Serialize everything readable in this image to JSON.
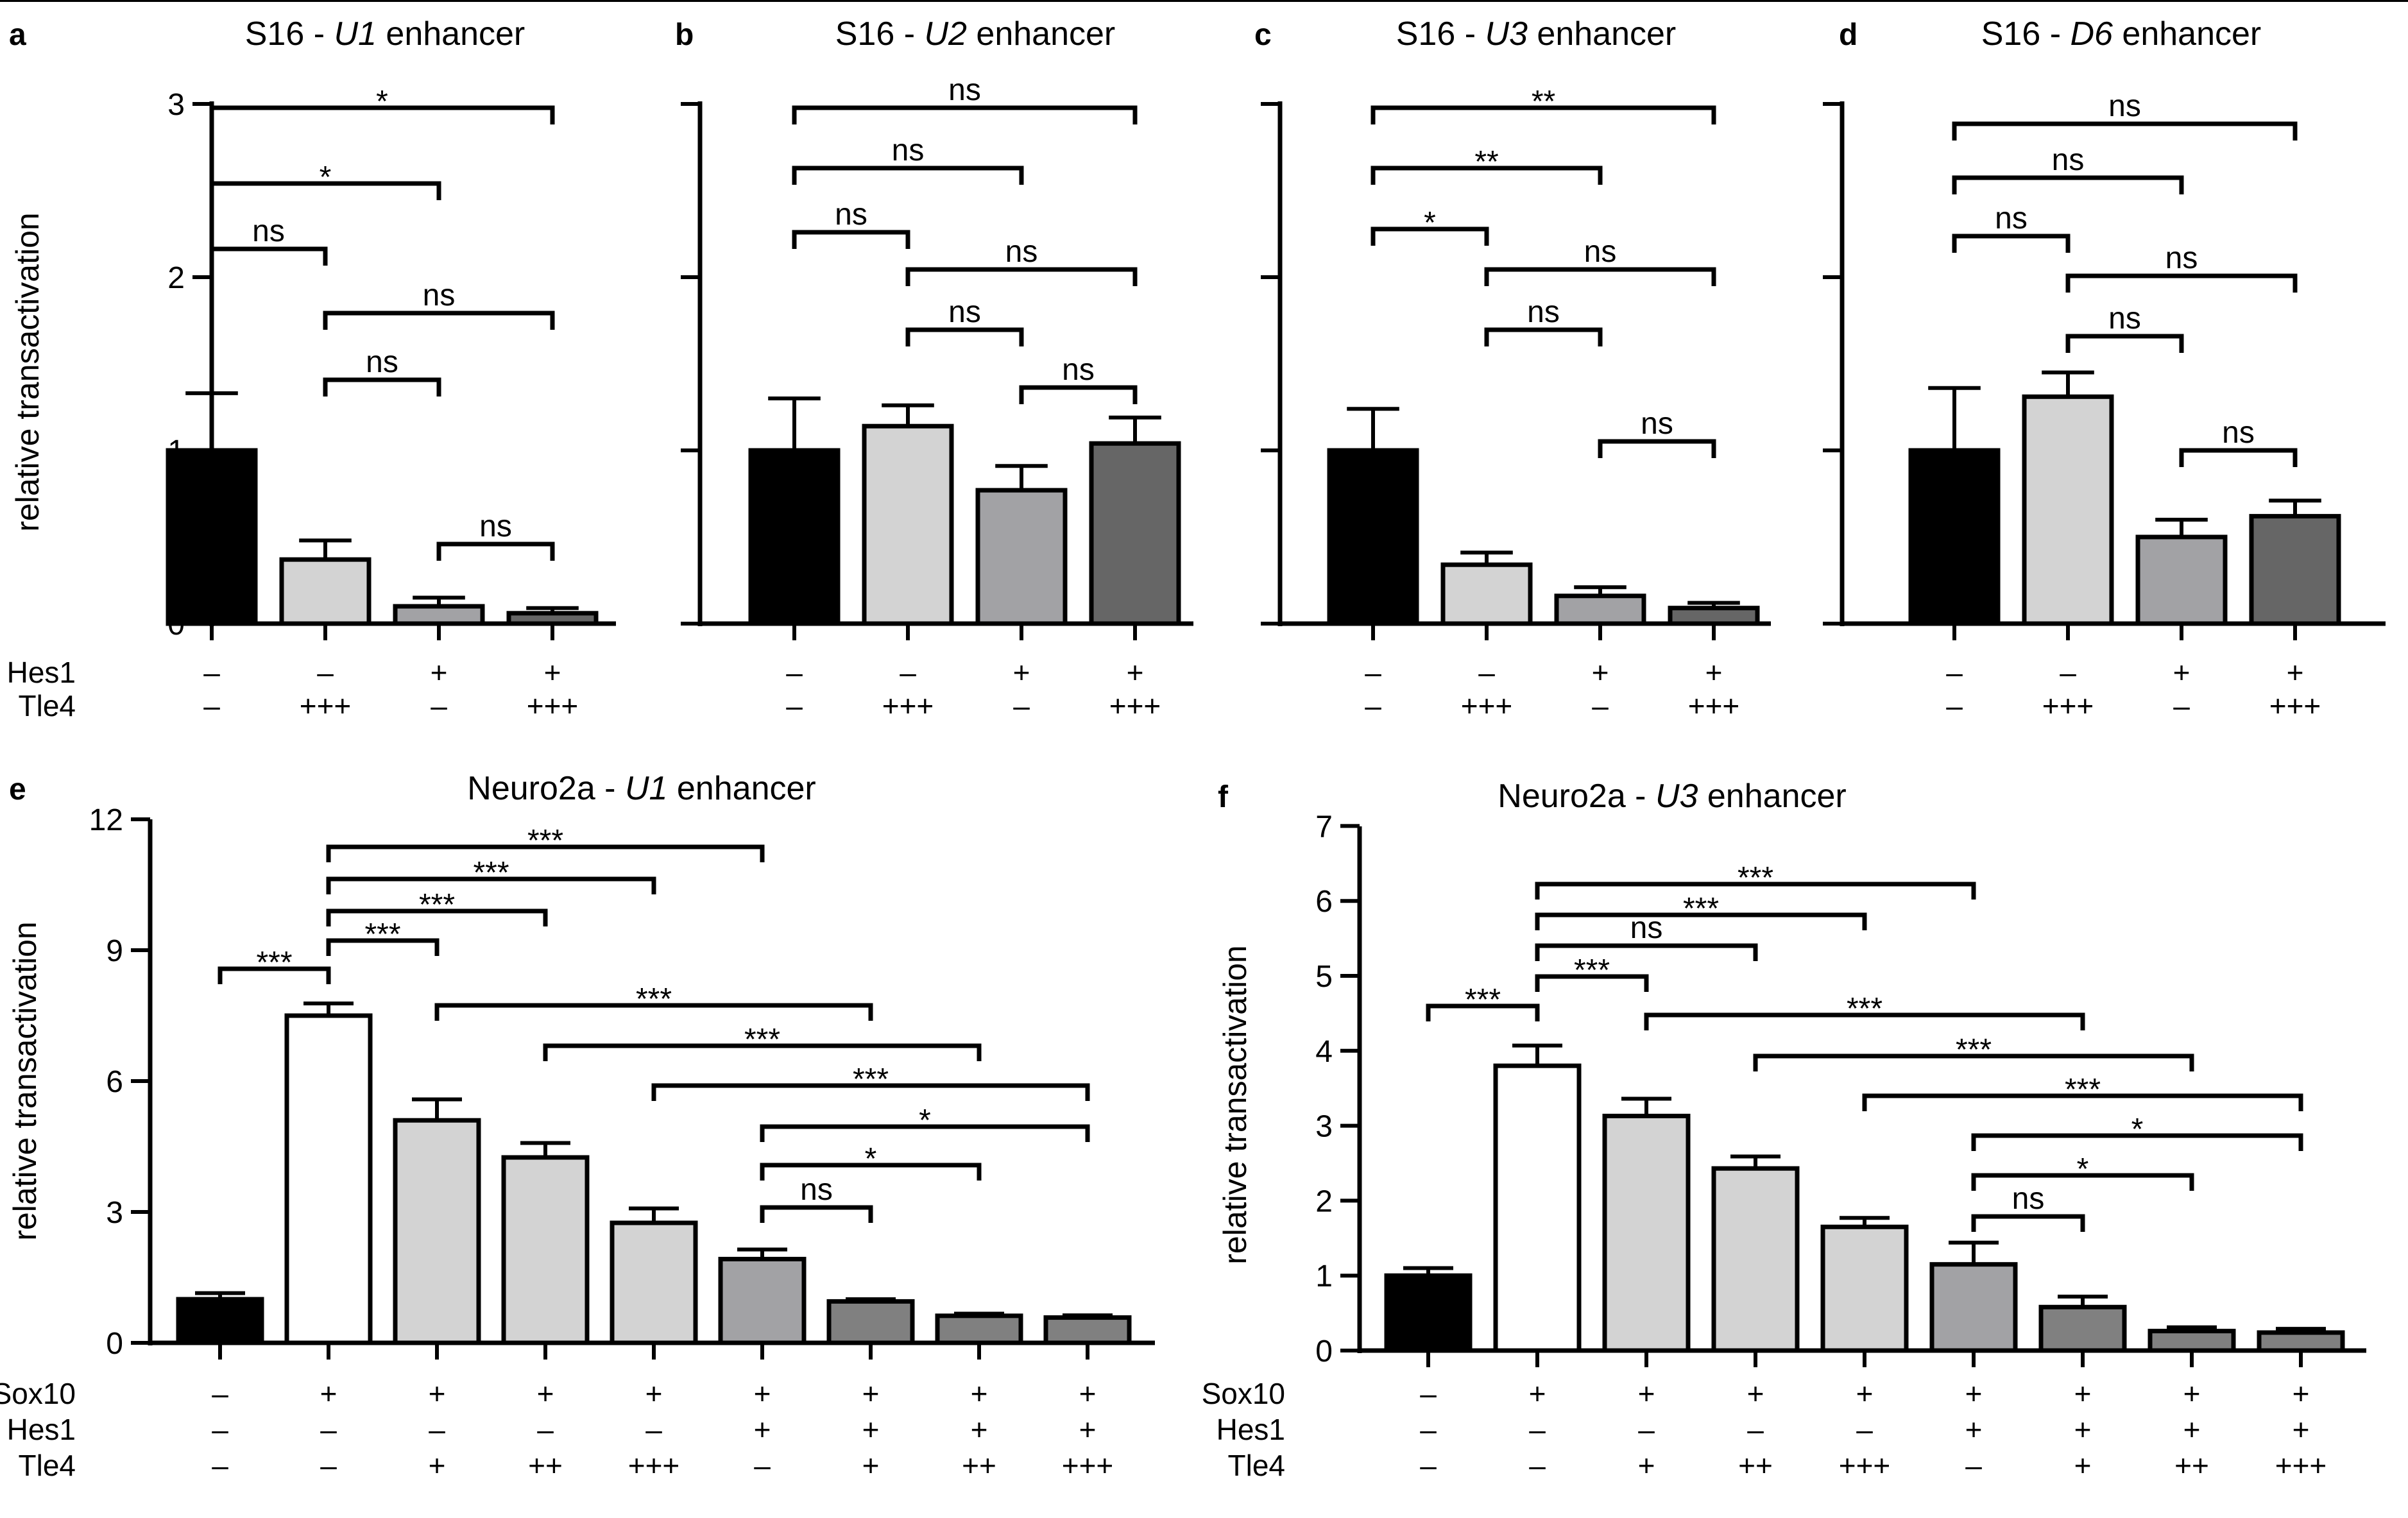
{
  "chart_data": [
    {
      "panel": "a",
      "type": "bar",
      "title": "S16 - U1 enhancer",
      "title_parts": [
        "S16 - ",
        "U1",
        " enhancer"
      ],
      "ylabel": "relative transactivation",
      "ylim": [
        0,
        3
      ],
      "yticks": [
        "0",
        "1",
        "2",
        "3"
      ],
      "values": [
        1.0,
        0.37,
        0.1,
        0.06
      ],
      "errors": [
        0.33,
        0.11,
        0.05,
        0.03
      ],
      "colors": [
        "#000000",
        "#d3d3d3",
        "#a2a2a5",
        "#666666"
      ],
      "row_labels": [
        "Hes1",
        "Tle4"
      ],
      "conditions": [
        [
          "–",
          "–",
          "+",
          "+"
        ],
        [
          "–",
          "+++",
          "–",
          "+++"
        ]
      ],
      "significance": [
        {
          "from": 0,
          "to": 3,
          "label": "*"
        },
        {
          "from": 0,
          "to": 2,
          "label": "*"
        },
        {
          "from": 0,
          "to": 1,
          "label": "ns"
        },
        {
          "from": 1,
          "to": 3,
          "label": "ns"
        },
        {
          "from": 1,
          "to": 2,
          "label": "ns"
        },
        {
          "from": 2,
          "to": 3,
          "label": "ns"
        }
      ]
    },
    {
      "panel": "b",
      "type": "bar",
      "title": "S16 - U2 enhancer",
      "title_parts": [
        "S16 - ",
        "U2",
        " enhancer"
      ],
      "ylim": [
        0,
        3
      ],
      "values": [
        1.0,
        1.14,
        0.77,
        1.04
      ],
      "errors": [
        0.3,
        0.12,
        0.14,
        0.15
      ],
      "colors": [
        "#000000",
        "#d3d3d3",
        "#a2a2a5",
        "#666666"
      ],
      "conditions": [
        [
          "–",
          "–",
          "+",
          "+"
        ],
        [
          "–",
          "+++",
          "–",
          "+++"
        ]
      ],
      "significance": [
        {
          "from": 0,
          "to": 3,
          "label": "ns"
        },
        {
          "from": 0,
          "to": 2,
          "label": "ns"
        },
        {
          "from": 0,
          "to": 1,
          "label": "ns"
        },
        {
          "from": 1,
          "to": 3,
          "label": "ns"
        },
        {
          "from": 1,
          "to": 2,
          "label": "ns"
        },
        {
          "from": 2,
          "to": 3,
          "label": "ns"
        }
      ]
    },
    {
      "panel": "c",
      "type": "bar",
      "title": "S16 - U3 enhancer",
      "title_parts": [
        "S16 - ",
        "U3",
        " enhancer"
      ],
      "ylim": [
        0,
        3
      ],
      "values": [
        1.0,
        0.34,
        0.16,
        0.09
      ],
      "errors": [
        0.24,
        0.07,
        0.05,
        0.03
      ],
      "colors": [
        "#000000",
        "#d3d3d3",
        "#a2a2a5",
        "#666666"
      ],
      "conditions": [
        [
          "–",
          "–",
          "+",
          "+"
        ],
        [
          "–",
          "+++",
          "–",
          "+++"
        ]
      ],
      "significance": [
        {
          "from": 0,
          "to": 3,
          "label": "**"
        },
        {
          "from": 0,
          "to": 2,
          "label": "**"
        },
        {
          "from": 0,
          "to": 1,
          "label": "*"
        },
        {
          "from": 1,
          "to": 3,
          "label": "ns"
        },
        {
          "from": 1,
          "to": 2,
          "label": "ns"
        },
        {
          "from": 2,
          "to": 3,
          "label": "ns"
        }
      ]
    },
    {
      "panel": "d",
      "type": "bar",
      "title": "S16 - D6 enhancer",
      "title_parts": [
        "S16 - ",
        "D6",
        " enhancer"
      ],
      "ylim": [
        0,
        3
      ],
      "values": [
        1.0,
        1.31,
        0.5,
        0.62
      ],
      "errors": [
        0.36,
        0.14,
        0.1,
        0.09
      ],
      "colors": [
        "#000000",
        "#d3d3d3",
        "#a2a2a5",
        "#666666"
      ],
      "conditions": [
        [
          "–",
          "–",
          "+",
          "+"
        ],
        [
          "–",
          "+++",
          "–",
          "+++"
        ]
      ],
      "significance": [
        {
          "from": 0,
          "to": 3,
          "label": "ns"
        },
        {
          "from": 0,
          "to": 2,
          "label": "ns"
        },
        {
          "from": 0,
          "to": 1,
          "label": "ns"
        },
        {
          "from": 1,
          "to": 3,
          "label": "ns"
        },
        {
          "from": 1,
          "to": 2,
          "label": "ns"
        },
        {
          "from": 2,
          "to": 3,
          "label": "ns"
        }
      ]
    },
    {
      "panel": "e",
      "type": "bar",
      "title": "Neuro2a - U1 enhancer",
      "title_parts": [
        "Neuro2a - ",
        "U1",
        " enhancer"
      ],
      "ylabel": "relative transactivation",
      "ylim": [
        0,
        12
      ],
      "yticks": [
        "0",
        "3",
        "6",
        "9",
        "12"
      ],
      "values": [
        1.0,
        7.5,
        5.1,
        4.25,
        2.75,
        1.92,
        0.95,
        0.62,
        0.58
      ],
      "errors": [
        0.14,
        0.28,
        0.48,
        0.33,
        0.33,
        0.22,
        0.05,
        0.05,
        0.05
      ],
      "colors": [
        "#000000",
        "#ffffff",
        "#d3d3d3",
        "#d3d3d3",
        "#d3d3d3",
        "#a2a2a5",
        "#808080",
        "#808080",
        "#808080"
      ],
      "row_labels": [
        "Sox10",
        "Hes1",
        "Tle4"
      ],
      "conditions": [
        [
          "–",
          "+",
          "+",
          "+",
          "+",
          "+",
          "+",
          "+",
          "+"
        ],
        [
          "–",
          "–",
          "–",
          "–",
          "–",
          "+",
          "+",
          "+",
          "+"
        ],
        [
          "–",
          "–",
          "+",
          "++",
          "+++",
          "–",
          "+",
          "++",
          "+++"
        ]
      ],
      "significance": [
        {
          "from": 0,
          "to": 1,
          "label": "***"
        },
        {
          "from": 1,
          "to": 5,
          "label": "***"
        },
        {
          "from": 1,
          "to": 4,
          "label": "***"
        },
        {
          "from": 1,
          "to": 3,
          "label": "***"
        },
        {
          "from": 1,
          "to": 2,
          "label": "***"
        },
        {
          "from": 2,
          "to": 6,
          "label": "***"
        },
        {
          "from": 3,
          "to": 7,
          "label": "***"
        },
        {
          "from": 4,
          "to": 8,
          "label": "***"
        },
        {
          "from": 5,
          "to": 8,
          "label": "*"
        },
        {
          "from": 5,
          "to": 7,
          "label": "*"
        },
        {
          "from": 5,
          "to": 6,
          "label": "ns"
        }
      ]
    },
    {
      "panel": "f",
      "type": "bar",
      "title": "Neuro2a - U3 enhancer",
      "title_parts": [
        "Neuro2a - ",
        "U3",
        " enhancer"
      ],
      "ylabel": "relative transactivation",
      "ylim": [
        0,
        7
      ],
      "yticks": [
        "0",
        "1",
        "2",
        "3",
        "4",
        "5",
        "6",
        "7"
      ],
      "values": [
        1.0,
        3.8,
        3.13,
        2.43,
        1.65,
        1.15,
        0.58,
        0.26,
        0.24
      ],
      "errors": [
        0.1,
        0.27,
        0.23,
        0.16,
        0.12,
        0.29,
        0.14,
        0.05,
        0.05
      ],
      "colors": [
        "#000000",
        "#ffffff",
        "#d3d3d3",
        "#d3d3d3",
        "#d3d3d3",
        "#a2a2a5",
        "#808080",
        "#808080",
        "#808080"
      ],
      "row_labels": [
        "Sox10",
        "Hes1",
        "Tle4"
      ],
      "conditions": [
        [
          "–",
          "+",
          "+",
          "+",
          "+",
          "+",
          "+",
          "+",
          "+"
        ],
        [
          "–",
          "–",
          "–",
          "–",
          "–",
          "+",
          "+",
          "+",
          "+"
        ],
        [
          "–",
          "–",
          "+",
          "++",
          "+++",
          "–",
          "+",
          "++",
          "+++"
        ]
      ],
      "significance": [
        {
          "from": 0,
          "to": 1,
          "label": "***"
        },
        {
          "from": 1,
          "to": 5,
          "label": "***"
        },
        {
          "from": 1,
          "to": 4,
          "label": "***"
        },
        {
          "from": 1,
          "to": 3,
          "label": "ns"
        },
        {
          "from": 1,
          "to": 2,
          "label": "***"
        },
        {
          "from": 2,
          "to": 6,
          "label": "***"
        },
        {
          "from": 3,
          "to": 7,
          "label": "***"
        },
        {
          "from": 4,
          "to": 8,
          "label": "***"
        },
        {
          "from": 5,
          "to": 8,
          "label": "*"
        },
        {
          "from": 5,
          "to": 7,
          "label": "*"
        },
        {
          "from": 5,
          "to": 6,
          "label": "ns"
        }
      ]
    }
  ]
}
